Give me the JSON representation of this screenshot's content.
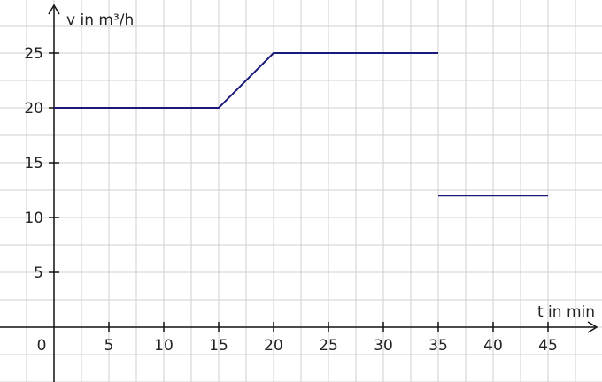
{
  "chart_data": {
    "type": "line",
    "xlabel": "t in min",
    "ylabel": "v in m³/h",
    "origin_label": "0",
    "xlim": [
      -5,
      50
    ],
    "ylim": [
      -5,
      29
    ],
    "x_ticks": [
      5,
      10,
      15,
      20,
      25,
      30,
      35,
      40,
      45
    ],
    "y_ticks": [
      5,
      10,
      15,
      20,
      25
    ],
    "x_tick_labels": [
      "5",
      "10",
      "15",
      "20",
      "25",
      "30",
      "35",
      "40",
      "45"
    ],
    "y_tick_labels": [
      "5",
      "10",
      "15",
      "20",
      "25"
    ],
    "grid": true,
    "grid_step": 2.5,
    "series": [
      {
        "x": [
          0,
          15,
          20,
          35
        ],
        "y": [
          20,
          20,
          25,
          25
        ]
      },
      {
        "x": [
          35,
          45
        ],
        "y": [
          12,
          12
        ]
      }
    ],
    "colors": {
      "line": "#1a1a7a",
      "grid": "#cfcfcf",
      "axis": "#111111",
      "text": "#222222"
    }
  }
}
